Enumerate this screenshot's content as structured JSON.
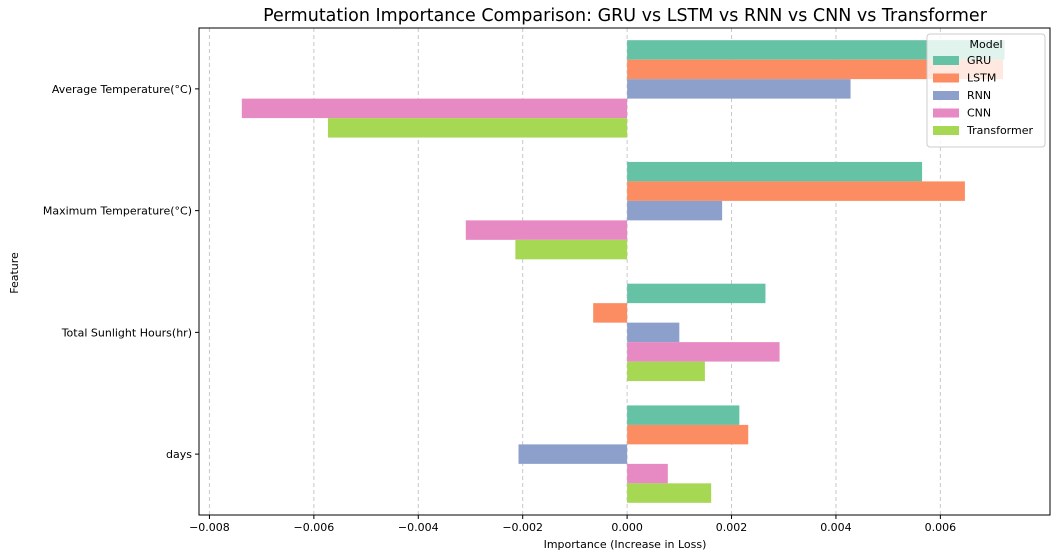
{
  "chart_data": {
    "type": "bar",
    "orientation": "horizontal",
    "title": "Permutation Importance Comparison: GRU vs LSTM vs RNN vs CNN vs Transformer",
    "xlabel": "Importance (Increase in Loss)",
    "ylabel": "Feature",
    "categories": [
      "Average Temperature(°C)",
      "Maximum Temperature(°C)",
      "Total Sunlight Hours(hr)",
      "days"
    ],
    "xlim": [
      -0.0082,
      0.0081
    ],
    "xticks": [
      -0.008,
      -0.006,
      -0.004,
      -0.002,
      0.0,
      0.002,
      0.004,
      0.006
    ],
    "xtick_labels": [
      "−0.008",
      "−0.006",
      "−0.004",
      "−0.002",
      "0.000",
      "0.002",
      "0.004",
      "0.006"
    ],
    "grid": "x, dashed",
    "legend": {
      "title": "Model",
      "placement": "top-right"
    },
    "series": [
      {
        "name": "GRU",
        "color": "#66c2a5",
        "values": [
          0.00723,
          0.00565,
          0.00265,
          0.00215
        ]
      },
      {
        "name": "LSTM",
        "color": "#fc8d62",
        "values": [
          0.0072,
          0.00647,
          -0.00065,
          0.00232
        ]
      },
      {
        "name": "RNN",
        "color": "#8da0cb",
        "values": [
          0.00428,
          0.00182,
          0.001,
          -0.00208
        ]
      },
      {
        "name": "CNN",
        "color": "#e78ac3",
        "values": [
          -0.00738,
          -0.00309,
          0.00292,
          0.00078
        ]
      },
      {
        "name": "Transformer",
        "color": "#a6d854",
        "values": [
          -0.00573,
          -0.00214,
          0.00149,
          0.00161
        ]
      }
    ]
  }
}
